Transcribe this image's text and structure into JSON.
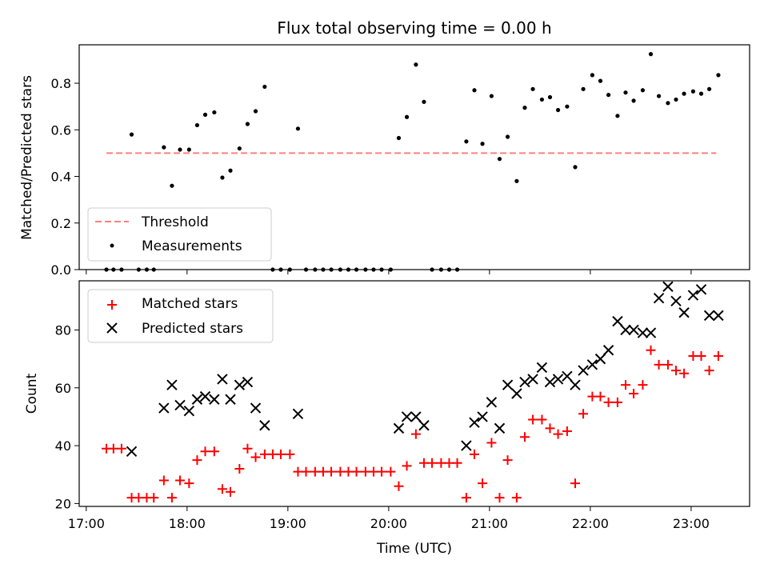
{
  "title": "Flux total observing time = 0.00 h",
  "xlabel": "Time (UTC)",
  "colors": {
    "threshold": "#ff7f7f",
    "measurements": "#000000",
    "matched": "#ff0000",
    "predicted": "#000000"
  },
  "chart_data": [
    {
      "type": "scatter",
      "ylabel": "Matched/Predicted stars",
      "ylim": [
        0,
        0.965
      ],
      "xlim": [
        16.93,
        23.58
      ],
      "yticks": [
        0.0,
        0.2,
        0.4,
        0.6,
        0.8
      ],
      "ytick_labels": [
        "0.0",
        "0.2",
        "0.4",
        "0.6",
        "0.8"
      ],
      "legend_placement": "lower-left",
      "threshold": {
        "name": "Threshold",
        "x": [
          17.2,
          23.25
        ],
        "y": [
          0.5,
          0.5
        ]
      },
      "series": [
        {
          "name": "Measurements",
          "x": [
            17.2,
            17.27,
            17.35,
            17.45,
            17.52,
            17.6,
            17.67,
            17.77,
            17.85,
            17.93,
            18.02,
            18.1,
            18.18,
            18.27,
            18.35,
            18.43,
            18.52,
            18.6,
            18.68,
            18.77,
            18.85,
            18.93,
            19.02,
            19.1,
            19.18,
            19.27,
            19.35,
            19.43,
            19.52,
            19.6,
            19.68,
            19.77,
            19.85,
            19.93,
            20.02,
            20.1,
            20.18,
            20.27,
            20.35,
            20.43,
            20.52,
            20.6,
            20.68,
            20.77,
            20.85,
            20.93,
            21.02,
            21.1,
            21.18,
            21.27,
            21.35,
            21.43,
            21.52,
            21.6,
            21.68,
            21.77,
            21.85,
            21.93,
            22.02,
            22.1,
            22.18,
            22.27,
            22.35,
            22.43,
            22.52,
            22.6,
            22.68,
            22.77,
            22.85,
            22.93,
            23.02,
            23.1,
            23.18,
            23.27
          ],
          "y": [
            0.0,
            0.0,
            0.0,
            0.58,
            0.0,
            0.0,
            0.0,
            0.525,
            0.36,
            0.515,
            0.515,
            0.62,
            0.665,
            0.675,
            0.395,
            0.425,
            0.52,
            0.625,
            0.68,
            0.785,
            0.0,
            0.0,
            0.0,
            0.605,
            0.0,
            0.0,
            0.0,
            0.0,
            0.0,
            0.0,
            0.0,
            0.0,
            0.0,
            0.0,
            0.0,
            0.565,
            0.655,
            0.88,
            0.72,
            0.0,
            0.0,
            0.0,
            0.0,
            0.55,
            0.77,
            0.54,
            0.745,
            0.475,
            0.57,
            0.38,
            0.695,
            0.775,
            0.73,
            0.74,
            0.685,
            0.7,
            0.44,
            0.775,
            0.835,
            0.81,
            0.75,
            0.66,
            0.76,
            0.725,
            0.77,
            0.925,
            0.745,
            0.715,
            0.73,
            0.755,
            0.765,
            0.755,
            0.775,
            0.835
          ]
        }
      ]
    },
    {
      "type": "scatter",
      "ylabel": "Count",
      "ylim": [
        19,
        97
      ],
      "xlim": [
        16.93,
        23.58
      ],
      "yticks": [
        20,
        40,
        60,
        80
      ],
      "ytick_labels": [
        "20",
        "40",
        "60",
        "80"
      ],
      "xticks": [
        17,
        18,
        19,
        20,
        21,
        22,
        23
      ],
      "xtick_labels": [
        "17:00",
        "18:00",
        "19:00",
        "20:00",
        "21:00",
        "22:00",
        "23:00"
      ],
      "legend_placement": "upper-left",
      "series": [
        {
          "name": "Matched stars",
          "x": [
            17.2,
            17.27,
            17.35,
            17.45,
            17.52,
            17.6,
            17.67,
            17.77,
            17.85,
            17.93,
            18.02,
            18.1,
            18.18,
            18.27,
            18.35,
            18.43,
            18.52,
            18.6,
            18.68,
            18.77,
            18.85,
            18.93,
            19.02,
            19.1,
            19.18,
            19.27,
            19.35,
            19.43,
            19.52,
            19.6,
            19.68,
            19.77,
            19.85,
            19.93,
            20.02,
            20.1,
            20.18,
            20.27,
            20.35,
            20.43,
            20.52,
            20.6,
            20.68,
            20.77,
            20.85,
            20.93,
            21.02,
            21.1,
            21.18,
            21.27,
            21.35,
            21.43,
            21.52,
            21.6,
            21.68,
            21.77,
            21.85,
            21.93,
            22.02,
            22.1,
            22.18,
            22.27,
            22.35,
            22.43,
            22.52,
            22.6,
            22.68,
            22.77,
            22.85,
            22.93,
            23.02,
            23.1,
            23.18,
            23.27
          ],
          "y": [
            39,
            39,
            39,
            22,
            22,
            22,
            22,
            28,
            22,
            28,
            27,
            35,
            38,
            38,
            25,
            24,
            32,
            39,
            36,
            37,
            37,
            37,
            37,
            31,
            31,
            31,
            31,
            31,
            31,
            31,
            31,
            31,
            31,
            31,
            31,
            26,
            33,
            44,
            34,
            34,
            34,
            34,
            34,
            22,
            37,
            27,
            41,
            22,
            35,
            22,
            43,
            49,
            49,
            46,
            44,
            45,
            27,
            51,
            57,
            57,
            55,
            55,
            61,
            58,
            61,
            73,
            68,
            68,
            66,
            65,
            71,
            71,
            66,
            71
          ]
        },
        {
          "name": "Predicted stars",
          "x": [
            17.45,
            17.77,
            17.85,
            17.93,
            18.02,
            18.1,
            18.18,
            18.27,
            18.35,
            18.43,
            18.52,
            18.6,
            18.68,
            18.77,
            19.1,
            20.1,
            20.18,
            20.27,
            20.35,
            20.77,
            20.85,
            20.93,
            21.02,
            21.1,
            21.18,
            21.27,
            21.35,
            21.43,
            21.52,
            21.6,
            21.68,
            21.77,
            21.85,
            21.93,
            22.02,
            22.1,
            22.18,
            22.27,
            22.35,
            22.43,
            22.52,
            22.6,
            22.68,
            22.77,
            22.85,
            22.93,
            23.02,
            23.1,
            23.18,
            23.27
          ],
          "y": [
            38,
            53,
            61,
            54,
            52,
            56,
            57,
            56,
            63,
            56,
            61,
            62,
            53,
            47,
            51,
            46,
            50,
            50,
            47,
            40,
            48,
            50,
            55,
            46,
            61,
            58,
            62,
            63,
            67,
            62,
            63,
            64,
            61,
            66,
            68,
            70,
            73,
            83,
            80,
            80,
            79,
            79,
            91,
            95,
            90,
            86,
            92,
            94,
            85,
            85
          ]
        }
      ]
    }
  ]
}
